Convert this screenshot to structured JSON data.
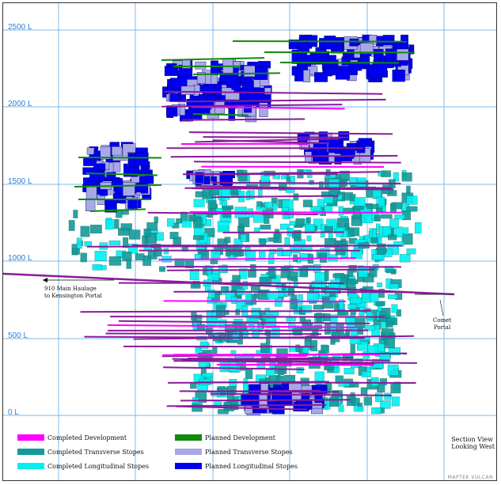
{
  "levels": [
    {
      "label": "2500 L"
    },
    {
      "label": "2000 L"
    },
    {
      "label": "1500 L"
    },
    {
      "label": "1000 L"
    },
    {
      "label": "500 L"
    },
    {
      "label": "0 L"
    }
  ],
  "annotations": {
    "haulage": "910 Main Haulage\nto Kensington Portal",
    "comet": "Comet\nPortal"
  },
  "legend": [
    {
      "label": "Completed Development",
      "color": "#ff00ff"
    },
    {
      "label": "Completed Transverse Stopes",
      "color": "#139a9a"
    },
    {
      "label": "Completed Longitudinal Stopes",
      "color": "#00f0f0"
    },
    {
      "label": "Planned Development",
      "color": "#108a10"
    },
    {
      "label": "Planned Transverse Stopes",
      "color": "#a8a8e8"
    },
    {
      "label": "Planned Longitudinal Stopes",
      "color": "#0000ee"
    }
  ],
  "section_note": "Section View\nLooking West",
  "brand": "MAPTEK VULCAN",
  "colors": {
    "grid": "#7fb8ea",
    "development": "#8a1a9a",
    "development_bright": "#ff00ff",
    "transverse": "#139a9a",
    "longitudinal": "#00f0f0",
    "planned_dev": "#108a10",
    "planned_trans": "#a8a8e8",
    "planned_long": "#0000ee"
  }
}
